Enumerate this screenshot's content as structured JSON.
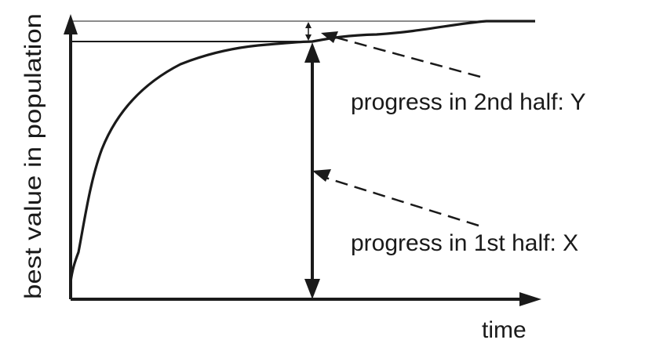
{
  "diagram": {
    "y_axis_label": "best value in population",
    "x_axis_label": "time",
    "annotations": {
      "second_half": "progress in 2nd half: Y",
      "first_half": "progress in 1st half: X"
    }
  },
  "colors": {
    "ink": "#1a1a1a",
    "background": "#ffffff"
  }
}
